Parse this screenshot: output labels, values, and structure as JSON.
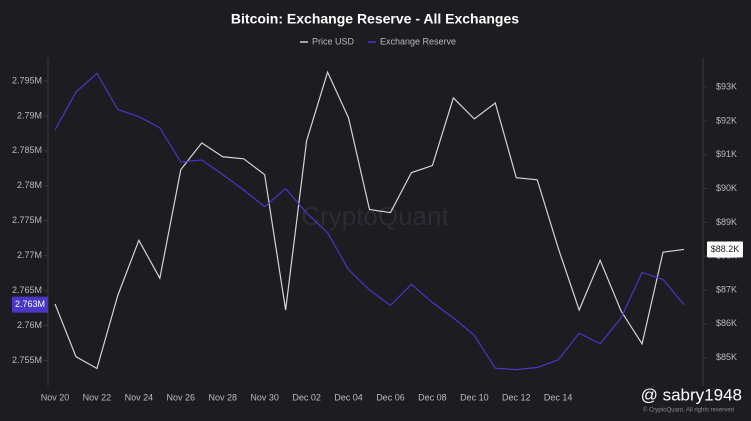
{
  "chart_data": {
    "type": "line",
    "title": "Bitcoin: Exchange Reserve - All Exchanges",
    "watermark": "CryptoQuant",
    "credit": "© CryptoQuant. All rights reserved",
    "overlay": "@ sabry1948",
    "categories": [
      "Nov 20",
      null,
      "Nov 22",
      null,
      "Nov 24",
      null,
      "Nov 26",
      null,
      "Nov 28",
      null,
      "Nov 30",
      null,
      "Dec 02",
      null,
      "Dec 04",
      null,
      "Dec 06",
      null,
      "Dec 08",
      null,
      "Dec 10",
      null,
      "Dec 12",
      null,
      "Dec 14",
      null,
      null,
      null,
      null,
      null,
      null
    ],
    "series": [
      {
        "name": "Price USD",
        "color": "#d4d4d8",
        "axis": "y2",
        "values": [
          86590,
          85030,
          84680,
          86850,
          88470,
          87350,
          90560,
          91350,
          90940,
          90880,
          90410,
          86410,
          91410,
          93440,
          92090,
          89380,
          89290,
          90470,
          90680,
          92680,
          92060,
          92530,
          90320,
          90260,
          88240,
          86410,
          87880,
          86380,
          85410,
          88120,
          88200
        ],
        "value_labels": [
          null,
          null,
          null,
          null,
          null,
          null,
          null,
          null,
          null,
          null,
          null,
          null,
          null,
          null,
          null,
          null,
          null,
          null,
          null,
          null,
          null,
          null,
          null,
          null,
          null,
          null,
          null,
          null,
          null,
          null,
          "$88.2K"
        ]
      },
      {
        "name": "Exchange Reserve",
        "color": "#4a37c8",
        "values": [
          2788000,
          2793400,
          2796100,
          2790900,
          2789900,
          2788300,
          2783400,
          2783700,
          2781600,
          2779400,
          2777000,
          2779600,
          2776100,
          2773300,
          2768000,
          2765100,
          2762900,
          2765900,
          2763300,
          2761100,
          2758600,
          2753900,
          2753700,
          2754000,
          2755100,
          2758900,
          2757400,
          2761100,
          2767600,
          2766600,
          2763000
        ],
        "value_labels": [
          null,
          null,
          null,
          null,
          null,
          null,
          null,
          null,
          null,
          null,
          null,
          null,
          null,
          null,
          null,
          null,
          null,
          null,
          null,
          null,
          null,
          null,
          null,
          null,
          null,
          null,
          null,
          null,
          null,
          null,
          "2.763M"
        ]
      }
    ],
    "ylim": [
      2752500,
      2798000
    ],
    "yticks": [
      {
        "value": 2755000,
        "label": "2.755M"
      },
      {
        "value": 2760000,
        "label": "2.76M"
      },
      {
        "value": 2765000,
        "label": "2.765M"
      },
      {
        "value": 2770000,
        "label": "2.77M"
      },
      {
        "value": 2775000,
        "label": "2.775M"
      },
      {
        "value": 2780000,
        "label": "2.78M"
      },
      {
        "value": 2785000,
        "label": "2.785M"
      },
      {
        "value": 2790000,
        "label": "2.79M"
      },
      {
        "value": 2795000,
        "label": "2.795M"
      }
    ],
    "y2lim": [
      84400,
      93800
    ],
    "y2ticks": [
      {
        "value": 85000,
        "label": "$85K"
      },
      {
        "value": 86000,
        "label": "$86K"
      },
      {
        "value": 87000,
        "label": "$87K"
      },
      {
        "value": 88000,
        "label": "$88K"
      },
      {
        "value": 89000,
        "label": "$89K"
      },
      {
        "value": 90000,
        "label": "$90K"
      },
      {
        "value": 91000,
        "label": "$91K"
      },
      {
        "value": 92000,
        "label": "$92K"
      },
      {
        "value": 93000,
        "label": "$93K"
      }
    ],
    "grid": false,
    "legend": "top"
  }
}
